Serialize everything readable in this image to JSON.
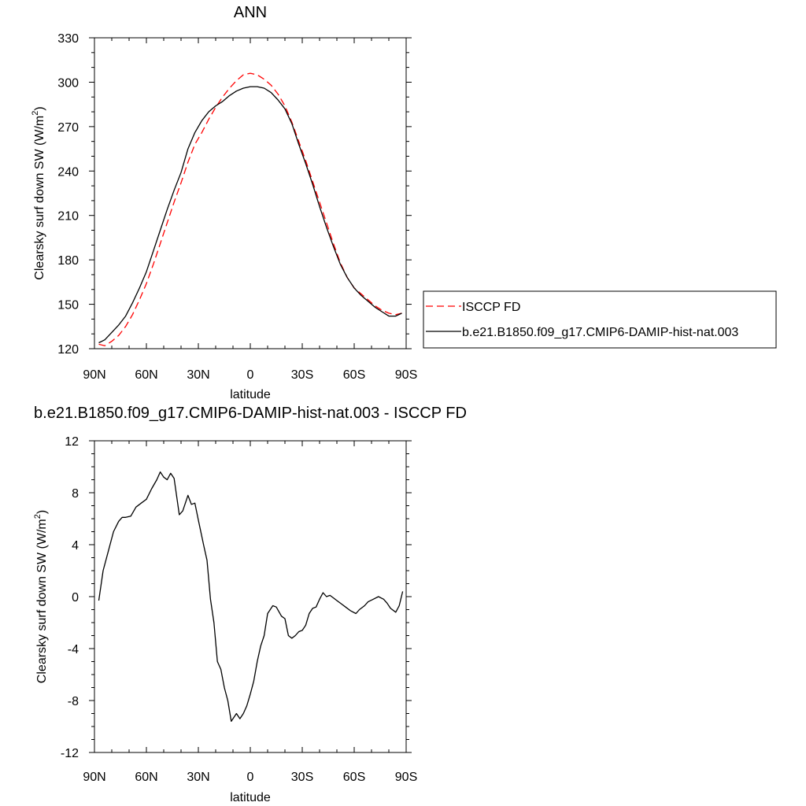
{
  "chart_data": [
    {
      "type": "line",
      "title": "ANN",
      "xlabel": "latitude",
      "ylabel": "Clearsky surf down SW (W/m",
      "ylabel_sup": "2",
      "ylabel_close": ")",
      "xlim": [
        90,
        -90
      ],
      "ylim": [
        120,
        330
      ],
      "xticks": [
        90,
        60,
        30,
        0,
        -30,
        -60,
        -90
      ],
      "xtick_labels": [
        "90N",
        "60N",
        "30N",
        "0",
        "30S",
        "60S",
        "90S"
      ],
      "yticks": [
        120,
        150,
        180,
        210,
        240,
        270,
        300,
        330
      ],
      "ytick_labels": [
        "120",
        "150",
        "180",
        "210",
        "240",
        "270",
        "300",
        "330"
      ],
      "grid": false,
      "legend_position": "right",
      "series": [
        {
          "name": "ISCCP FD",
          "color": "#ff0000",
          "dash": "dashed",
          "x": [
            87.5,
            84,
            80,
            76,
            72,
            68,
            64,
            60,
            56,
            52,
            48,
            44,
            40,
            36,
            32,
            28,
            24,
            20,
            16,
            12,
            8,
            4,
            0,
            -4,
            -8,
            -12,
            -16,
            -20,
            -24,
            -28,
            -32,
            -36,
            -40,
            -44,
            -48,
            -52,
            -56,
            -60,
            -64,
            -68,
            -72,
            -76,
            -80,
            -84,
            -87.5
          ],
          "y": [
            123,
            122,
            125,
            129,
            135,
            143,
            153,
            164,
            177,
            191,
            205,
            219,
            232,
            246,
            258,
            266,
            275,
            283,
            290,
            296,
            301,
            305,
            306,
            305,
            302,
            298,
            292,
            284,
            273,
            260,
            247,
            233,
            219,
            205,
            191,
            178,
            168,
            161,
            157,
            153,
            149,
            146,
            144,
            143,
            144
          ]
        },
        {
          "name": "b.e21.B1850.f09_g17.CMIP6-DAMIP-hist-nat.003",
          "color": "#000000",
          "dash": "solid",
          "x": [
            87.5,
            84,
            80,
            76,
            72,
            68,
            64,
            60,
            56,
            52,
            48,
            44,
            40,
            36,
            32,
            28,
            24,
            20,
            16,
            12,
            8,
            4,
            0,
            -4,
            -8,
            -12,
            -16,
            -20,
            -24,
            -28,
            -32,
            -36,
            -40,
            -44,
            -48,
            -52,
            -56,
            -60,
            -64,
            -68,
            -72,
            -76,
            -80,
            -84,
            -87.5
          ],
          "y": [
            124,
            126,
            131,
            136,
            142,
            151,
            161,
            172,
            186,
            200,
            214,
            227,
            239,
            255,
            266,
            274,
            280,
            284,
            287,
            291,
            294,
            296,
            297,
            297,
            296,
            293,
            288,
            282,
            272,
            258,
            245,
            231,
            216,
            202,
            189,
            177,
            168,
            161,
            156,
            152,
            148,
            145,
            142,
            142,
            144
          ]
        }
      ]
    },
    {
      "type": "line",
      "title": "b.e21.B1850.f09_g17.CMIP6-DAMIP-hist-nat.003 - ISCCP FD",
      "xlabel": "latitude",
      "ylabel": "Clearsky surf down SW (W/m",
      "ylabel_sup": "2",
      "ylabel_close": ")",
      "xlim": [
        90,
        -90
      ],
      "ylim": [
        -12,
        12
      ],
      "xticks": [
        90,
        60,
        30,
        0,
        -30,
        -60,
        -90
      ],
      "xtick_labels": [
        "90N",
        "60N",
        "30N",
        "0",
        "30S",
        "60S",
        "90S"
      ],
      "yticks": [
        -12,
        -8,
        -4,
        0,
        4,
        8,
        12
      ],
      "ytick_labels": [
        "-12",
        "-8",
        "-4",
        "0",
        "4",
        "8",
        "12"
      ],
      "grid": false,
      "series": [
        {
          "color": "#000000",
          "dash": "solid",
          "x": [
            87.5,
            85,
            82,
            79,
            76,
            74,
            72,
            69,
            66,
            63,
            60,
            57,
            54,
            52,
            50,
            48,
            46,
            44,
            41,
            39,
            36,
            34,
            32,
            30,
            27,
            25,
            23,
            21,
            19,
            17,
            15,
            13,
            11,
            8,
            6,
            4,
            2,
            0,
            -2,
            -4,
            -6,
            -8,
            -10,
            -13,
            -15,
            -18,
            -20,
            -22,
            -24,
            -26,
            -28,
            -30,
            -32,
            -34,
            -36,
            -38,
            -40,
            -42,
            -44,
            -46,
            -48,
            -50,
            -53,
            -55,
            -58,
            -61,
            -63,
            -66,
            -68,
            -71,
            -74,
            -77,
            -79,
            -81,
            -84,
            -86,
            -88
          ],
          "y": [
            -0.3,
            2,
            3.5,
            5,
            5.8,
            6.1,
            6.1,
            6.2,
            6.9,
            7.2,
            7.5,
            8.3,
            9,
            9.6,
            9.2,
            9.0,
            9.5,
            9.1,
            6.3,
            6.6,
            7.8,
            7.1,
            7.2,
            5.9,
            4,
            2.8,
            -0.2,
            -2,
            -5,
            -5.6,
            -7,
            -8,
            -9.6,
            -9,
            -9.4,
            -9,
            -8.4,
            -7.5,
            -6.5,
            -5,
            -3.8,
            -3,
            -1.3,
            -0.7,
            -0.8,
            -1.5,
            -1.7,
            -3,
            -3.2,
            -3,
            -2.7,
            -2.6,
            -2.2,
            -1.3,
            -0.9,
            -0.8,
            -0.2,
            0.3,
            0,
            0.1,
            -0.1,
            -0.3,
            -0.6,
            -0.8,
            -1.1,
            -1.3,
            -1.0,
            -0.7,
            -0.4,
            -0.2,
            0,
            -0.2,
            -0.5,
            -0.9,
            -1.2,
            -0.7,
            0.4
          ]
        }
      ]
    }
  ]
}
